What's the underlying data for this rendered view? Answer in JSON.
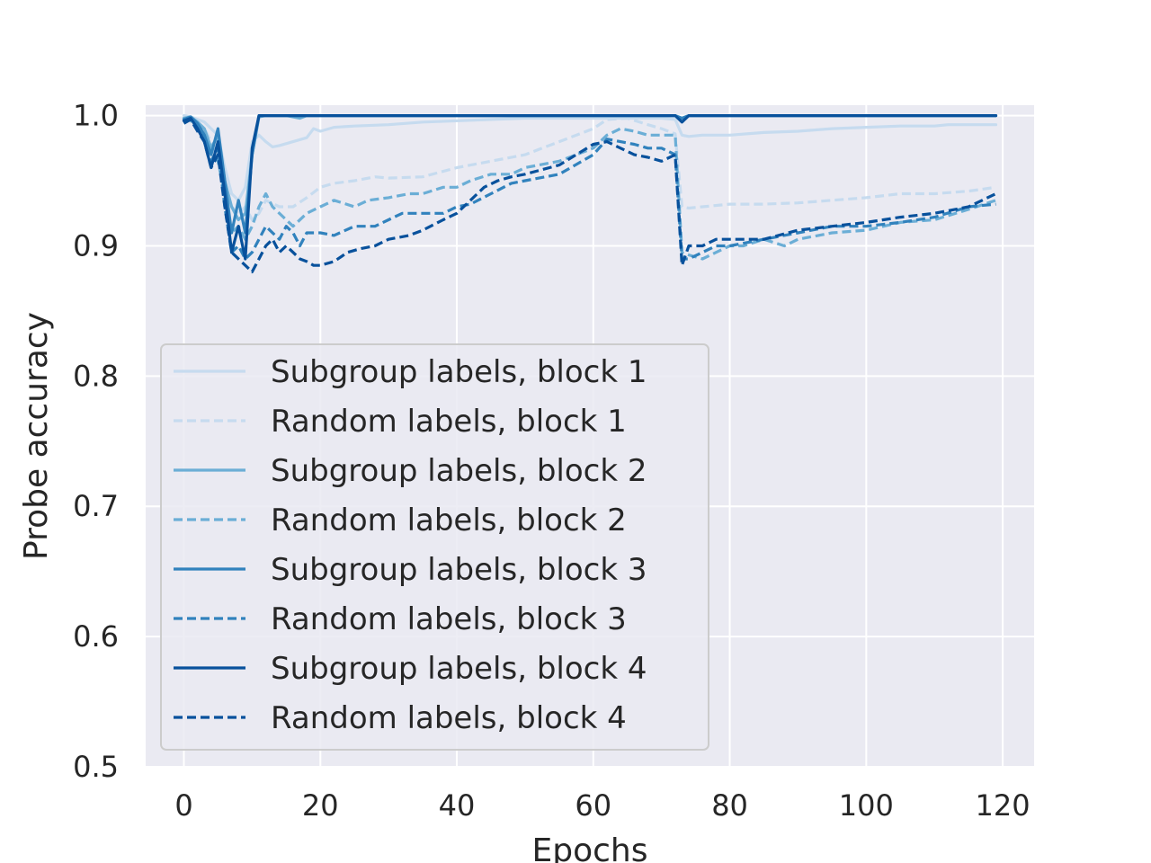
{
  "chart_data": {
    "type": "line",
    "title": "",
    "xlabel": "Epochs",
    "ylabel": "Probe accuracy",
    "xlim": [
      -5.6,
      124.6
    ],
    "ylim": [
      0.5,
      1.008
    ],
    "xticks": [
      0,
      20,
      40,
      60,
      80,
      100,
      120
    ],
    "yticks": [
      0.5,
      0.6,
      0.7,
      0.8,
      0.9,
      1.0
    ],
    "xtick_labels": [
      "0",
      "20",
      "40",
      "60",
      "80",
      "100",
      "120"
    ],
    "ytick_labels": [
      "0.5",
      "0.6",
      "0.7",
      "0.8",
      "0.9",
      "1.0"
    ],
    "grid": true,
    "legend_position": "lower-left",
    "series": [
      {
        "name": "Subgroup labels, block 1",
        "color": "#c6dbef",
        "dash": "solid",
        "x": [
          0,
          1,
          2,
          3,
          4,
          5,
          6,
          7,
          8,
          9,
          10,
          11,
          12,
          13,
          14,
          16,
          18,
          19,
          20,
          22,
          25,
          30,
          35,
          40,
          45,
          50,
          60,
          65,
          70,
          72,
          73,
          74,
          76,
          80,
          85,
          90,
          95,
          100,
          105,
          110,
          112,
          115,
          119
        ],
        "y": [
          1.0,
          0.999,
          0.997,
          0.995,
          0.99,
          0.985,
          0.96,
          0.94,
          0.935,
          0.945,
          0.98,
          0.985,
          0.98,
          0.976,
          0.977,
          0.98,
          0.983,
          0.99,
          0.988,
          0.991,
          0.992,
          0.993,
          0.995,
          0.996,
          0.997,
          0.998,
          0.998,
          0.998,
          0.998,
          0.997,
          0.985,
          0.984,
          0.985,
          0.985,
          0.987,
          0.988,
          0.99,
          0.991,
          0.992,
          0.992,
          0.993,
          0.993,
          0.993
        ]
      },
      {
        "name": "Random labels, block 1",
        "color": "#c6dbef",
        "dash": "dashed",
        "x": [
          0,
          1,
          2,
          3,
          4,
          5,
          6,
          7,
          8,
          9,
          10,
          11,
          12,
          14,
          16,
          18,
          20,
          22,
          25,
          28,
          30,
          35,
          40,
          45,
          50,
          55,
          60,
          62,
          65,
          68,
          70,
          72,
          73,
          74,
          76,
          80,
          85,
          90,
          95,
          100,
          105,
          110,
          115,
          119
        ],
        "y": [
          1.0,
          0.998,
          0.995,
          0.99,
          0.98,
          0.965,
          0.945,
          0.93,
          0.925,
          0.93,
          0.92,
          0.925,
          0.935,
          0.93,
          0.93,
          0.937,
          0.945,
          0.948,
          0.95,
          0.953,
          0.952,
          0.953,
          0.96,
          0.965,
          0.97,
          0.98,
          0.99,
          0.997,
          0.998,
          0.993,
          0.99,
          0.986,
          0.93,
          0.929,
          0.93,
          0.932,
          0.932,
          0.933,
          0.935,
          0.937,
          0.94,
          0.94,
          0.942,
          0.945
        ]
      },
      {
        "name": "Subgroup labels, block 2",
        "color": "#6baed6",
        "dash": "solid",
        "x": [
          0,
          1,
          2,
          3,
          4,
          5,
          6,
          7,
          8,
          9,
          10,
          11,
          12,
          15,
          17,
          18,
          20,
          30,
          40,
          50,
          60,
          70,
          72,
          73,
          74,
          80,
          90,
          100,
          110,
          119
        ],
        "y": [
          0.998,
          0.999,
          0.995,
          0.99,
          0.975,
          0.985,
          0.95,
          0.93,
          0.92,
          0.925,
          0.97,
          0.999,
          1.0,
          1.0,
          0.998,
          1.0,
          1.0,
          1.0,
          1.0,
          1.0,
          1.0,
          1.0,
          1.0,
          0.998,
          1.0,
          1.0,
          1.0,
          1.0,
          1.0,
          1.0
        ]
      },
      {
        "name": "Random labels, block 2",
        "color": "#6baed6",
        "dash": "dashed",
        "x": [
          0,
          1,
          2,
          3,
          4,
          5,
          6,
          7,
          8,
          9,
          10,
          11,
          12,
          13,
          14,
          15,
          16,
          18,
          20,
          22,
          25,
          27,
          30,
          33,
          35,
          38,
          40,
          42,
          45,
          48,
          50,
          55,
          60,
          62,
          64,
          66,
          68,
          70,
          72,
          73,
          74,
          76,
          78,
          80,
          82,
          85,
          88,
          90,
          95,
          100,
          105,
          110,
          115,
          119
        ],
        "y": [
          0.998,
          0.996,
          0.993,
          0.99,
          0.97,
          0.965,
          0.94,
          0.91,
          0.915,
          0.905,
          0.915,
          0.93,
          0.94,
          0.93,
          0.925,
          0.92,
          0.915,
          0.925,
          0.93,
          0.935,
          0.93,
          0.935,
          0.937,
          0.94,
          0.94,
          0.945,
          0.945,
          0.95,
          0.955,
          0.955,
          0.96,
          0.965,
          0.975,
          0.985,
          0.99,
          0.988,
          0.985,
          0.985,
          0.985,
          0.895,
          0.893,
          0.89,
          0.895,
          0.9,
          0.9,
          0.905,
          0.9,
          0.905,
          0.91,
          0.912,
          0.918,
          0.92,
          0.928,
          0.935
        ]
      },
      {
        "name": "Subgroup labels, block 3",
        "color": "#3182bd",
        "dash": "solid",
        "x": [
          0,
          1,
          2,
          3,
          4,
          5,
          6,
          7,
          8,
          9,
          10,
          11,
          12,
          20,
          40,
          60,
          72,
          73,
          74,
          90,
          119
        ],
        "y": [
          0.997,
          0.999,
          0.994,
          0.985,
          0.97,
          0.99,
          0.95,
          0.91,
          0.935,
          0.91,
          0.97,
          1.0,
          1.0,
          1.0,
          1.0,
          1.0,
          1.0,
          0.998,
          1.0,
          1.0,
          1.0
        ]
      },
      {
        "name": "Random labels, block 3",
        "color": "#3182bd",
        "dash": "dashed",
        "x": [
          0,
          1,
          2,
          3,
          4,
          5,
          6,
          7,
          8,
          9,
          10,
          11,
          12,
          13,
          14,
          15,
          16,
          17,
          18,
          20,
          22,
          25,
          28,
          30,
          32,
          35,
          38,
          40,
          42,
          45,
          48,
          50,
          55,
          60,
          62,
          64,
          66,
          68,
          70,
          72,
          73,
          74,
          76,
          78,
          80,
          85,
          90,
          95,
          100,
          105,
          110,
          115,
          119
        ],
        "y": [
          0.995,
          0.998,
          0.99,
          0.985,
          0.965,
          0.975,
          0.93,
          0.895,
          0.9,
          0.89,
          0.895,
          0.905,
          0.915,
          0.91,
          0.905,
          0.915,
          0.91,
          0.9,
          0.91,
          0.91,
          0.908,
          0.915,
          0.915,
          0.92,
          0.925,
          0.925,
          0.925,
          0.93,
          0.932,
          0.94,
          0.948,
          0.95,
          0.955,
          0.97,
          0.982,
          0.98,
          0.978,
          0.975,
          0.975,
          0.97,
          0.89,
          0.89,
          0.895,
          0.9,
          0.9,
          0.905,
          0.91,
          0.915,
          0.915,
          0.918,
          0.922,
          0.93,
          0.932
        ]
      },
      {
        "name": "Subgroup labels, block 4",
        "color": "#08519c",
        "dash": "solid",
        "x": [
          0,
          1,
          2,
          3,
          4,
          5,
          6,
          7,
          8,
          9,
          10,
          11,
          12,
          20,
          40,
          60,
          72,
          73,
          74,
          90,
          119
        ],
        "y": [
          0.996,
          0.998,
          0.99,
          0.98,
          0.96,
          0.98,
          0.94,
          0.895,
          0.915,
          0.89,
          0.975,
          1.0,
          1.0,
          1.0,
          1.0,
          1.0,
          1.0,
          0.995,
          1.0,
          1.0,
          1.0
        ]
      },
      {
        "name": "Random labels, block 4",
        "color": "#08519c",
        "dash": "dashed",
        "x": [
          0,
          1,
          2,
          3,
          4,
          5,
          6,
          7,
          8,
          9,
          10,
          11,
          12,
          13,
          14,
          15,
          16,
          17,
          18,
          19,
          20,
          22,
          24,
          26,
          28,
          30,
          33,
          35,
          38,
          40,
          42,
          44,
          46,
          48,
          50,
          55,
          60,
          62,
          64,
          66,
          68,
          70,
          72,
          73,
          74,
          76,
          78,
          80,
          85,
          90,
          95,
          100,
          105,
          110,
          115,
          119
        ],
        "y": [
          0.994,
          0.997,
          0.988,
          0.98,
          0.96,
          0.97,
          0.93,
          0.895,
          0.89,
          0.885,
          0.88,
          0.89,
          0.9,
          0.905,
          0.895,
          0.9,
          0.895,
          0.89,
          0.888,
          0.885,
          0.885,
          0.888,
          0.895,
          0.898,
          0.9,
          0.905,
          0.908,
          0.912,
          0.92,
          0.925,
          0.935,
          0.945,
          0.95,
          0.953,
          0.955,
          0.962,
          0.978,
          0.98,
          0.975,
          0.97,
          0.968,
          0.965,
          0.97,
          0.885,
          0.9,
          0.9,
          0.905,
          0.905,
          0.905,
          0.912,
          0.915,
          0.918,
          0.922,
          0.925,
          0.93,
          0.94
        ]
      }
    ]
  }
}
